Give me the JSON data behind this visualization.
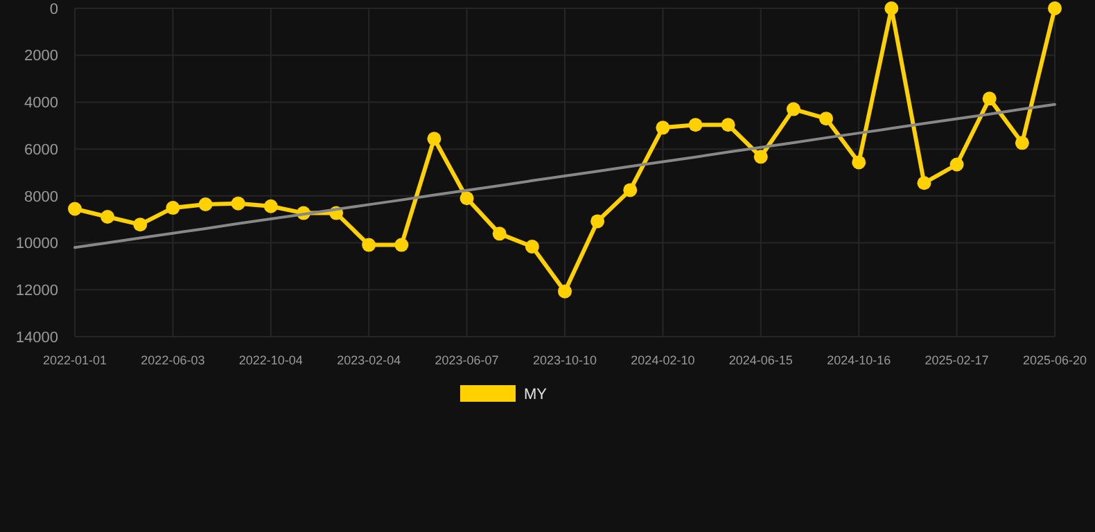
{
  "chart_data": {
    "type": "line",
    "categories": [
      "2022-01-01",
      null,
      null,
      "2022-06-03",
      null,
      null,
      "2022-10-04",
      null,
      null,
      "2023-02-04",
      null,
      null,
      "2023-06-07",
      null,
      null,
      "2023-10-10",
      null,
      null,
      "2024-02-10",
      null,
      null,
      "2024-06-15",
      null,
      null,
      "2024-10-16",
      null,
      null,
      "2025-02-17",
      null,
      null,
      "2025-06-20"
    ],
    "series": [
      {
        "name": "MY",
        "color": "#ffd100",
        "marker": "circle",
        "values": [
          8550,
          8890,
          9220,
          8510,
          8360,
          8320,
          8440,
          8730,
          8730,
          10090,
          10090,
          5560,
          8100,
          9610,
          10160,
          12070,
          9080,
          7750,
          5090,
          4970,
          4970,
          6330,
          4300,
          4700,
          6570,
          0,
          7450,
          6660,
          3850,
          5740,
          0
        ]
      },
      {
        "type": "line",
        "color": "#888888",
        "marker": "none",
        "values": [
          10200,
          10000,
          9790,
          9590,
          9390,
          9180,
          8980,
          8780,
          8570,
          8370,
          8170,
          7960,
          7760,
          7560,
          7350,
          7150,
          6950,
          6740,
          6540,
          6340,
          6130,
          5930,
          5730,
          5520,
          5320,
          5120,
          4910,
          4710,
          4510,
          4300,
          4100
        ]
      }
    ],
    "ylim": [
      14000,
      0
    ],
    "yticks": [
      0,
      2000,
      4000,
      6000,
      8000,
      10000,
      12000,
      14000
    ],
    "grid": true,
    "legend": "bottom"
  }
}
